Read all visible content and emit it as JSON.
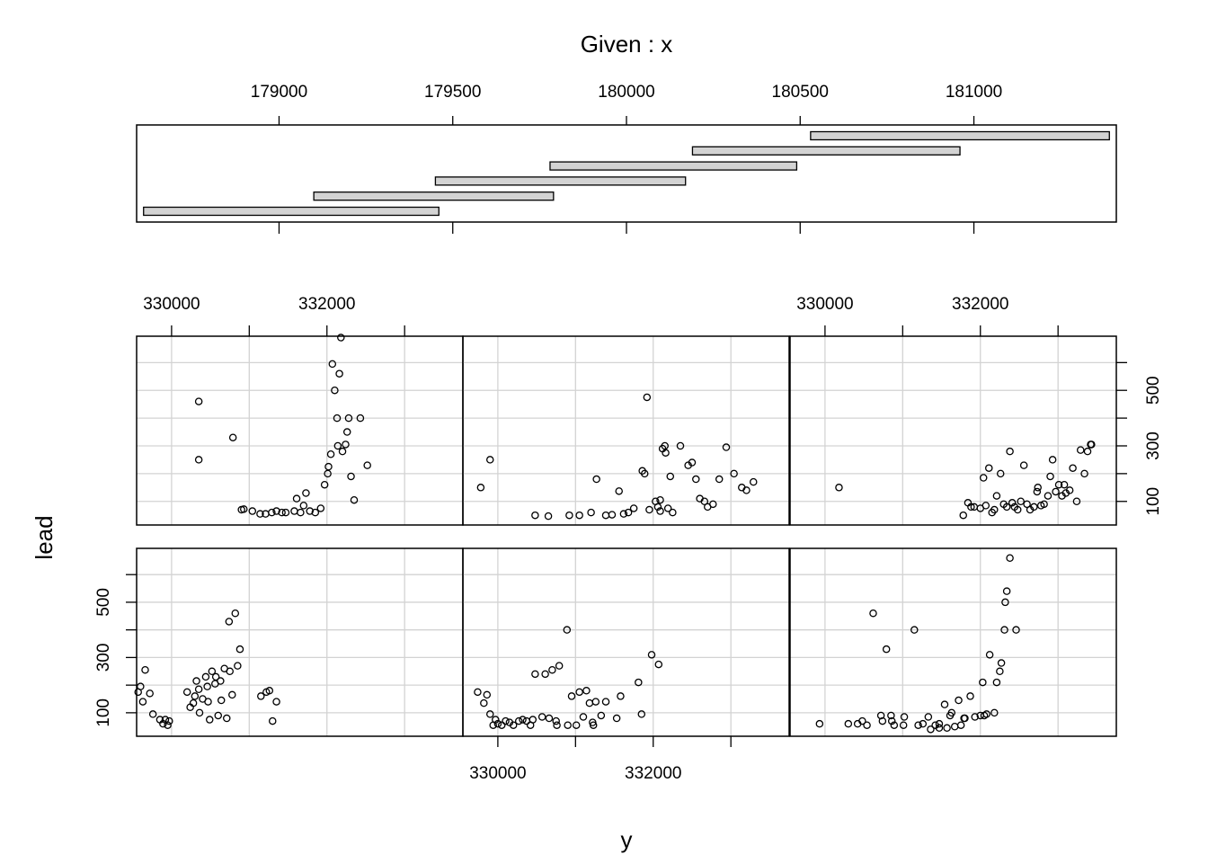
{
  "chart_data": {
    "type": "coplot",
    "given_title": "Given : x",
    "xlabel": "y",
    "ylabel": "lead",
    "given_axis": {
      "ticks": [
        "179000",
        "179500",
        "180000",
        "180500",
        "181000"
      ],
      "values": [
        179000,
        179500,
        180000,
        180500,
        181000
      ],
      "range": [
        178590,
        181410
      ]
    },
    "given_intervals": [
      [
        178610,
        179460
      ],
      [
        179100,
        179790
      ],
      [
        179450,
        180170
      ],
      [
        179780,
        180490
      ],
      [
        180190,
        180960
      ],
      [
        180530,
        181390
      ]
    ],
    "panel_x_axis": {
      "ticks": [
        "330000",
        "332000"
      ],
      "values": [
        330000,
        332000
      ],
      "minor": [
        331000,
        333000
      ],
      "range": [
        329550,
        333750
      ]
    },
    "panel_y_axis": {
      "ticks": [
        "100",
        "300",
        "500"
      ],
      "values": [
        100,
        300,
        500
      ],
      "minor": [
        200,
        400,
        600
      ],
      "range": [
        15,
        695
      ]
    },
    "panels": [
      {
        "name": "interval 1",
        "points": [
          [
            329570,
            175
          ],
          [
            329600,
            195
          ],
          [
            329630,
            140
          ],
          [
            329660,
            255
          ],
          [
            329720,
            170
          ],
          [
            329760,
            95
          ],
          [
            329850,
            75
          ],
          [
            329890,
            60
          ],
          [
            329920,
            75
          ],
          [
            329950,
            55
          ],
          [
            329970,
            70
          ],
          [
            330200,
            175
          ],
          [
            330240,
            120
          ],
          [
            330280,
            135
          ],
          [
            330320,
            215
          ],
          [
            330360,
            100
          ],
          [
            330400,
            150
          ],
          [
            330440,
            230
          ],
          [
            330470,
            140
          ],
          [
            330490,
            75
          ],
          [
            330520,
            250
          ],
          [
            330560,
            205
          ],
          [
            330600,
            90
          ],
          [
            330640,
            145
          ],
          [
            330680,
            260
          ],
          [
            330710,
            80
          ],
          [
            330740,
            430
          ],
          [
            330780,
            165
          ],
          [
            330820,
            460
          ],
          [
            330850,
            270
          ],
          [
            330880,
            330
          ],
          [
            331150,
            160
          ],
          [
            331220,
            175
          ],
          [
            331260,
            180
          ],
          [
            331300,
            70
          ],
          [
            331350,
            140
          ],
          [
            330300,
            160
          ],
          [
            330350,
            185
          ],
          [
            330460,
            195
          ],
          [
            330570,
            230
          ],
          [
            330630,
            215
          ],
          [
            330750,
            250
          ]
        ]
      },
      {
        "name": "interval 2",
        "points": [
          [
            329740,
            175
          ],
          [
            329820,
            135
          ],
          [
            329860,
            165
          ],
          [
            329900,
            95
          ],
          [
            329940,
            55
          ],
          [
            329970,
            75
          ],
          [
            330000,
            60
          ],
          [
            330050,
            55
          ],
          [
            330100,
            70
          ],
          [
            330150,
            65
          ],
          [
            330200,
            55
          ],
          [
            330270,
            70
          ],
          [
            330320,
            75
          ],
          [
            330370,
            70
          ],
          [
            330420,
            55
          ],
          [
            330450,
            75
          ],
          [
            330480,
            240
          ],
          [
            330570,
            85
          ],
          [
            330610,
            240
          ],
          [
            330660,
            80
          ],
          [
            330700,
            255
          ],
          [
            330750,
            70
          ],
          [
            330760,
            55
          ],
          [
            330790,
            270
          ],
          [
            330890,
            400
          ],
          [
            330900,
            55
          ],
          [
            330950,
            160
          ],
          [
            331010,
            55
          ],
          [
            331050,
            175
          ],
          [
            331100,
            85
          ],
          [
            331140,
            180
          ],
          [
            331180,
            135
          ],
          [
            331220,
            65
          ],
          [
            331230,
            55
          ],
          [
            331260,
            140
          ],
          [
            331330,
            90
          ],
          [
            331390,
            140
          ],
          [
            331530,
            80
          ],
          [
            331580,
            160
          ],
          [
            331810,
            210
          ],
          [
            331850,
            95
          ],
          [
            331980,
            310
          ],
          [
            332070,
            275
          ]
        ]
      },
      {
        "name": "interval 3",
        "points": [
          [
            329930,
            60
          ],
          [
            330300,
            60
          ],
          [
            330420,
            60
          ],
          [
            330480,
            70
          ],
          [
            330540,
            55
          ],
          [
            330720,
            90
          ],
          [
            330740,
            70
          ],
          [
            330790,
            330
          ],
          [
            330850,
            90
          ],
          [
            330860,
            70
          ],
          [
            330890,
            55
          ],
          [
            331010,
            55
          ],
          [
            331020,
            85
          ],
          [
            331150,
            400
          ],
          [
            331200,
            55
          ],
          [
            331260,
            60
          ],
          [
            331330,
            85
          ],
          [
            331420,
            55
          ],
          [
            331470,
            60
          ],
          [
            331540,
            130
          ],
          [
            331610,
            90
          ],
          [
            331630,
            100
          ],
          [
            331720,
            145
          ],
          [
            331790,
            80
          ],
          [
            331800,
            80
          ],
          [
            331870,
            160
          ],
          [
            331930,
            85
          ],
          [
            332000,
            90
          ],
          [
            332030,
            210
          ],
          [
            332050,
            90
          ],
          [
            332080,
            95
          ],
          [
            332120,
            310
          ],
          [
            332180,
            100
          ],
          [
            332210,
            210
          ],
          [
            332250,
            250
          ],
          [
            332270,
            280
          ],
          [
            332310,
            400
          ],
          [
            332320,
            500
          ],
          [
            332340,
            540
          ],
          [
            332380,
            660
          ],
          [
            332460,
            400
          ],
          [
            331360,
            40
          ],
          [
            331470,
            45
          ],
          [
            331570,
            45
          ],
          [
            331670,
            50
          ],
          [
            331750,
            55
          ],
          [
            330620,
            460
          ]
        ]
      },
      {
        "name": "interval 4",
        "points": [
          [
            330350,
            460
          ],
          [
            330350,
            250
          ],
          [
            330790,
            330
          ],
          [
            330900,
            70
          ],
          [
            330930,
            72
          ],
          [
            331040,
            65
          ],
          [
            331140,
            55
          ],
          [
            331210,
            55
          ],
          [
            331290,
            60
          ],
          [
            331350,
            65
          ],
          [
            331420,
            60
          ],
          [
            331470,
            60
          ],
          [
            331580,
            65
          ],
          [
            331610,
            110
          ],
          [
            331660,
            60
          ],
          [
            331700,
            85
          ],
          [
            331730,
            130
          ],
          [
            331780,
            65
          ],
          [
            331850,
            60
          ],
          [
            331920,
            75
          ],
          [
            331970,
            160
          ],
          [
            332010,
            200
          ],
          [
            332020,
            225
          ],
          [
            332050,
            270
          ],
          [
            332070,
            595
          ],
          [
            332100,
            500
          ],
          [
            332130,
            400
          ],
          [
            332140,
            300
          ],
          [
            332160,
            560
          ],
          [
            332180,
            690
          ],
          [
            332200,
            280
          ],
          [
            332240,
            305
          ],
          [
            332260,
            350
          ],
          [
            332280,
            400
          ],
          [
            332310,
            190
          ],
          [
            332350,
            105
          ],
          [
            332430,
            400
          ],
          [
            332520,
            230
          ]
        ]
      },
      {
        "name": "interval 5",
        "points": [
          [
            329780,
            150
          ],
          [
            329900,
            250
          ],
          [
            330480,
            50
          ],
          [
            330650,
            47
          ],
          [
            330920,
            50
          ],
          [
            331050,
            50
          ],
          [
            331200,
            60
          ],
          [
            331270,
            180
          ],
          [
            331390,
            50
          ],
          [
            331470,
            52
          ],
          [
            331560,
            137
          ],
          [
            331620,
            55
          ],
          [
            331680,
            60
          ],
          [
            331750,
            75
          ],
          [
            331860,
            210
          ],
          [
            331890,
            200
          ],
          [
            331950,
            70
          ],
          [
            332030,
            100
          ],
          [
            332060,
            80
          ],
          [
            332090,
            65
          ],
          [
            332090,
            105
          ],
          [
            332120,
            290
          ],
          [
            332150,
            300
          ],
          [
            332160,
            275
          ],
          [
            332190,
            75
          ],
          [
            332220,
            190
          ],
          [
            332250,
            60
          ],
          [
            332350,
            300
          ],
          [
            332450,
            230
          ],
          [
            332500,
            240
          ],
          [
            332550,
            180
          ],
          [
            332600,
            110
          ],
          [
            332660,
            100
          ],
          [
            332700,
            80
          ],
          [
            332770,
            90
          ],
          [
            332850,
            180
          ],
          [
            332940,
            295
          ],
          [
            333040,
            200
          ],
          [
            333140,
            150
          ],
          [
            333200,
            140
          ],
          [
            333290,
            170
          ],
          [
            331920,
            475
          ]
        ]
      },
      {
        "name": "interval 6",
        "points": [
          [
            330180,
            150
          ],
          [
            331780,
            50
          ],
          [
            331840,
            95
          ],
          [
            331880,
            80
          ],
          [
            331920,
            80
          ],
          [
            332000,
            75
          ],
          [
            332040,
            185
          ],
          [
            332070,
            85
          ],
          [
            332110,
            220
          ],
          [
            332150,
            60
          ],
          [
            332180,
            70
          ],
          [
            332210,
            120
          ],
          [
            332260,
            200
          ],
          [
            332300,
            90
          ],
          [
            332340,
            80
          ],
          [
            332380,
            280
          ],
          [
            332410,
            95
          ],
          [
            332440,
            80
          ],
          [
            332480,
            70
          ],
          [
            332520,
            100
          ],
          [
            332560,
            230
          ],
          [
            332600,
            90
          ],
          [
            332640,
            70
          ],
          [
            332690,
            80
          ],
          [
            332730,
            135
          ],
          [
            332780,
            85
          ],
          [
            332820,
            90
          ],
          [
            332870,
            120
          ],
          [
            332900,
            190
          ],
          [
            332930,
            250
          ],
          [
            332970,
            135
          ],
          [
            333010,
            160
          ],
          [
            333050,
            120
          ],
          [
            333100,
            130
          ],
          [
            333150,
            140
          ],
          [
            333190,
            220
          ],
          [
            333240,
            100
          ],
          [
            333290,
            285
          ],
          [
            333340,
            200
          ],
          [
            333380,
            280
          ],
          [
            333430,
            305
          ],
          [
            332740,
            150
          ],
          [
            333080,
            160
          ],
          [
            333420,
            305
          ]
        ]
      }
    ],
    "grid": true,
    "layout": "2 rows x 3 columns; bottom row holds intervals 1-3, top row holds intervals 4-6",
    "point_marker": "open circle"
  }
}
